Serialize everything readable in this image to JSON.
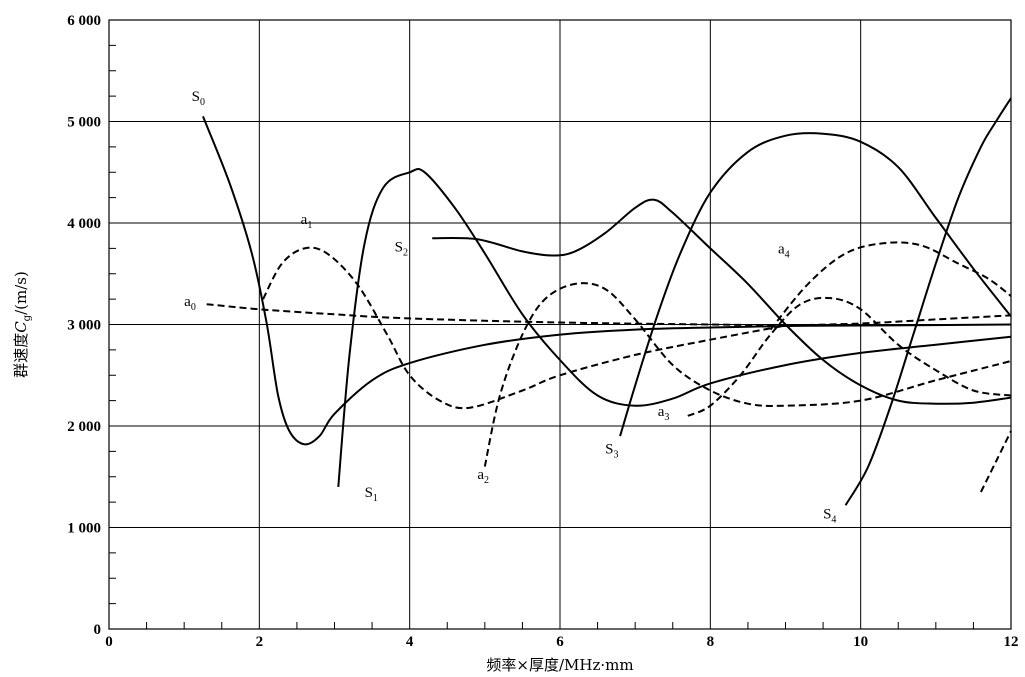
{
  "chart_data": {
    "type": "line",
    "xlabel": "频率×厚度/MHz·mm",
    "ylabel_prefix": "群速度",
    "ylabel_var": "C",
    "ylabel_sub": "g",
    "ylabel_unit": "/(m/s)",
    "xlim": [
      0,
      12
    ],
    "ylim": [
      0,
      6000
    ],
    "x_ticks": [
      0,
      2,
      4,
      6,
      8,
      10,
      12
    ],
    "x_tick_labels": [
      "0",
      "2",
      "4",
      "6",
      "8",
      "10",
      "12"
    ],
    "y_ticks": [
      0,
      1000,
      2000,
      3000,
      4000,
      5000,
      6000
    ],
    "y_tick_labels": [
      "0",
      "1 000",
      "2 000",
      "3 000",
      "4 000",
      "5 000",
      "6 000"
    ],
    "grid": true,
    "series": [
      {
        "name": "S0",
        "style": "solid",
        "points": [
          [
            1.25,
            5050
          ],
          [
            1.6,
            4400
          ],
          [
            1.9,
            3700
          ],
          [
            2.1,
            3000
          ],
          [
            2.25,
            2300
          ],
          [
            2.4,
            1950
          ],
          [
            2.6,
            1820
          ],
          [
            2.8,
            1900
          ],
          [
            3.0,
            2120
          ],
          [
            3.5,
            2450
          ],
          [
            4.0,
            2620
          ],
          [
            5.0,
            2800
          ],
          [
            6.0,
            2900
          ],
          [
            7.0,
            2950
          ],
          [
            8.0,
            2970
          ],
          [
            9.0,
            2985
          ],
          [
            10.0,
            2990
          ],
          [
            12.0,
            3000
          ]
        ]
      },
      {
        "name": "S1",
        "style": "solid",
        "points": [
          [
            3.05,
            1400
          ],
          [
            3.2,
            2700
          ],
          [
            3.4,
            3800
          ],
          [
            3.65,
            4350
          ],
          [
            4.0,
            4500
          ],
          [
            4.2,
            4500
          ],
          [
            4.6,
            4150
          ],
          [
            5.0,
            3700
          ],
          [
            5.5,
            3100
          ],
          [
            6.0,
            2650
          ],
          [
            6.5,
            2300
          ],
          [
            7.0,
            2200
          ],
          [
            7.5,
            2270
          ],
          [
            8.0,
            2420
          ],
          [
            9.0,
            2600
          ],
          [
            10.0,
            2720
          ],
          [
            11.0,
            2800
          ],
          [
            12.0,
            2880
          ]
        ]
      },
      {
        "name": "S2",
        "style": "solid",
        "points": [
          [
            4.3,
            3850
          ],
          [
            4.9,
            3840
          ],
          [
            5.5,
            3720
          ],
          [
            5.9,
            3680
          ],
          [
            6.2,
            3720
          ],
          [
            6.6,
            3900
          ],
          [
            7.0,
            4150
          ],
          [
            7.25,
            4230
          ],
          [
            7.5,
            4100
          ],
          [
            8.0,
            3750
          ],
          [
            8.5,
            3400
          ],
          [
            9.0,
            3000
          ],
          [
            9.5,
            2650
          ],
          [
            10.0,
            2400
          ],
          [
            10.5,
            2250
          ],
          [
            11.0,
            2220
          ],
          [
            11.5,
            2230
          ],
          [
            12.0,
            2280
          ]
        ]
      },
      {
        "name": "S3",
        "style": "solid",
        "points": [
          [
            6.8,
            1900
          ],
          [
            7.0,
            2400
          ],
          [
            7.3,
            3100
          ],
          [
            7.6,
            3700
          ],
          [
            8.0,
            4300
          ],
          [
            8.5,
            4700
          ],
          [
            9.0,
            4860
          ],
          [
            9.5,
            4880
          ],
          [
            10.0,
            4800
          ],
          [
            10.5,
            4550
          ],
          [
            11.0,
            4050
          ],
          [
            11.5,
            3550
          ],
          [
            12.0,
            3080
          ]
        ]
      },
      {
        "name": "S4",
        "style": "solid",
        "points": [
          [
            9.8,
            1220
          ],
          [
            10.1,
            1600
          ],
          [
            10.4,
            2200
          ],
          [
            10.7,
            2900
          ],
          [
            11.0,
            3600
          ],
          [
            11.3,
            4250
          ],
          [
            11.6,
            4750
          ],
          [
            11.8,
            5000
          ],
          [
            12.0,
            5230
          ]
        ]
      },
      {
        "name": "a0",
        "style": "dashed",
        "points": [
          [
            1.3,
            3200
          ],
          [
            2.0,
            3150
          ],
          [
            3.0,
            3100
          ],
          [
            4.0,
            3060
          ],
          [
            6.0,
            3020
          ],
          [
            8.0,
            3000
          ],
          [
            9.0,
            2990
          ]
        ]
      },
      {
        "name": "a0",
        "style": "dashed",
        "points": [
          [
            9.0,
            2990
          ],
          [
            10.0,
            3010
          ],
          [
            11.0,
            3050
          ],
          [
            12.0,
            3090
          ]
        ]
      },
      {
        "name": "a1",
        "style": "dashed",
        "points": [
          [
            2.05,
            3250
          ],
          [
            2.3,
            3600
          ],
          [
            2.6,
            3750
          ],
          [
            2.9,
            3700
          ],
          [
            3.3,
            3400
          ],
          [
            3.7,
            2900
          ],
          [
            4.0,
            2500
          ],
          [
            4.4,
            2250
          ],
          [
            4.8,
            2180
          ],
          [
            5.5,
            2350
          ],
          [
            6.0,
            2500
          ],
          [
            7.0,
            2700
          ],
          [
            8.0,
            2850
          ],
          [
            9.0,
            2990
          ]
        ]
      },
      {
        "name": "a2",
        "style": "dashed",
        "points": [
          [
            5.0,
            1600
          ],
          [
            5.2,
            2300
          ],
          [
            5.5,
            2900
          ],
          [
            5.8,
            3250
          ],
          [
            6.2,
            3400
          ],
          [
            6.6,
            3350
          ],
          [
            7.0,
            3050
          ],
          [
            7.5,
            2600
          ],
          [
            8.0,
            2350
          ],
          [
            8.5,
            2220
          ],
          [
            9.0,
            2200
          ],
          [
            10.0,
            2250
          ],
          [
            11.0,
            2450
          ],
          [
            12.0,
            2640
          ]
        ]
      },
      {
        "name": "a3",
        "style": "dashed",
        "points": [
          [
            7.7,
            2100
          ],
          [
            8.0,
            2200
          ],
          [
            8.4,
            2500
          ],
          [
            8.8,
            2900
          ],
          [
            9.2,
            3200
          ],
          [
            9.6,
            3260
          ],
          [
            10.0,
            3150
          ],
          [
            10.5,
            2800
          ],
          [
            11.0,
            2550
          ],
          [
            11.5,
            2350
          ],
          [
            12.0,
            2300
          ]
        ]
      },
      {
        "name": "a4",
        "style": "dashed",
        "points": [
          [
            8.8,
            2950
          ],
          [
            9.3,
            3400
          ],
          [
            9.8,
            3700
          ],
          [
            10.3,
            3800
          ],
          [
            10.8,
            3780
          ],
          [
            11.3,
            3600
          ],
          [
            11.7,
            3450
          ],
          [
            12.0,
            3280
          ]
        ]
      },
      {
        "name": "",
        "style": "dashed",
        "points": [
          [
            11.6,
            1350
          ],
          [
            11.8,
            1650
          ],
          [
            12.0,
            1950
          ]
        ]
      }
    ],
    "annotations": [
      {
        "text": "S",
        "sub": "0",
        "x": 1.1,
        "y": 5200
      },
      {
        "text": "S",
        "sub": "1",
        "x": 3.4,
        "y": 1300
      },
      {
        "text": "S",
        "sub": "2",
        "x": 3.8,
        "y": 3720
      },
      {
        "text": "S",
        "sub": "3",
        "x": 6.6,
        "y": 1730
      },
      {
        "text": "S",
        "sub": "4",
        "x": 9.5,
        "y": 1090
      },
      {
        "text": "a",
        "sub": "0",
        "x": 1.0,
        "y": 3180
      },
      {
        "text": "a",
        "sub": "1",
        "x": 2.55,
        "y": 3990
      },
      {
        "text": "a",
        "sub": "2",
        "x": 4.9,
        "y": 1480
      },
      {
        "text": "a",
        "sub": "3",
        "x": 7.3,
        "y": 2100
      },
      {
        "text": "a",
        "sub": "4",
        "x": 8.9,
        "y": 3700
      }
    ]
  }
}
